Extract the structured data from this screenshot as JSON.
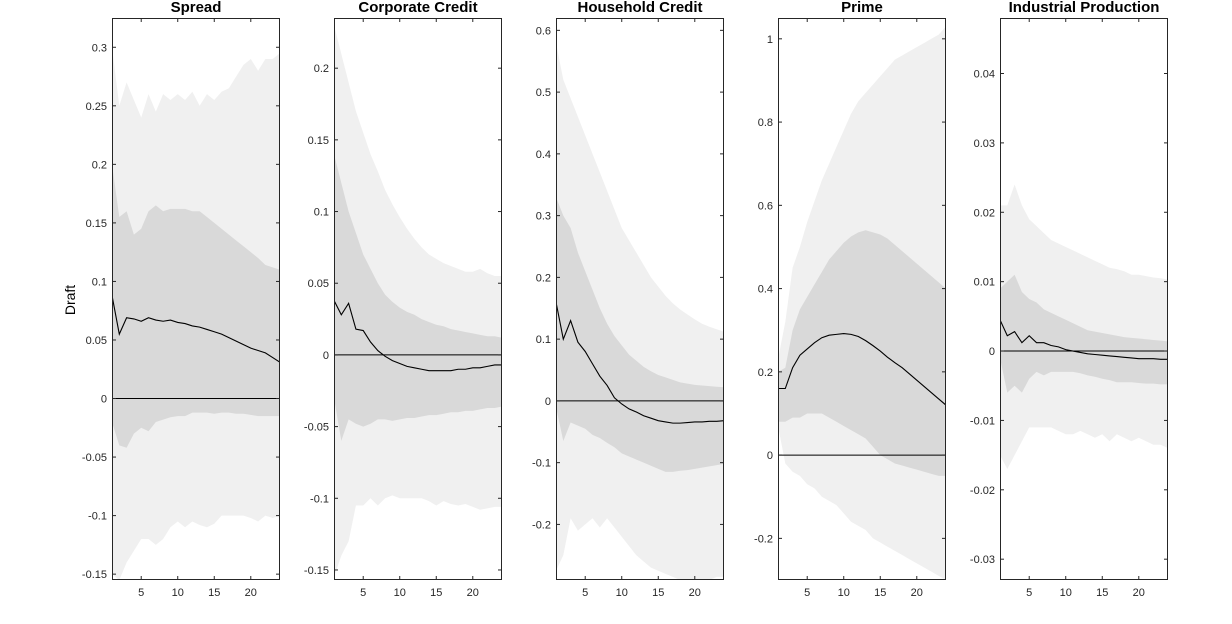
{
  "figure": {
    "ylabel": "Draft"
  },
  "chart_data": [
    {
      "type": "area",
      "title": "Spread",
      "xlabel": "",
      "ylabel": "Draft",
      "xlim": [
        1,
        24
      ],
      "ylim": [
        -0.155,
        0.325
      ],
      "xticks": [
        5,
        10,
        15,
        20
      ],
      "yticks": [
        -0.15,
        -0.1,
        -0.05,
        0,
        0.05,
        0.1,
        0.15,
        0.2,
        0.25,
        0.3
      ],
      "ytick_labels": [
        "-0.15",
        "-0.1",
        "-0.05",
        "0",
        "0.05",
        "0.1",
        "0.15",
        "0.2",
        "0.25",
        "0.3"
      ],
      "grid": false,
      "legend": "none",
      "x": [
        1,
        2,
        3,
        4,
        5,
        6,
        7,
        8,
        9,
        10,
        11,
        12,
        13,
        14,
        15,
        16,
        17,
        18,
        19,
        20,
        21,
        22,
        23,
        24
      ],
      "series": [
        {
          "role": "response",
          "values": [
            0.088,
            0.055,
            0.069,
            0.068,
            0.066,
            0.069,
            0.067,
            0.066,
            0.067,
            0.065,
            0.064,
            0.062,
            0.061,
            0.059,
            0.057,
            0.055,
            0.052,
            0.049,
            0.046,
            0.043,
            0.041,
            0.039,
            0.035,
            0.031
          ]
        },
        {
          "role": "band_inner_upper",
          "values": [
            0.2,
            0.155,
            0.16,
            0.14,
            0.145,
            0.16,
            0.165,
            0.16,
            0.162,
            0.162,
            0.162,
            0.16,
            0.16,
            0.155,
            0.15,
            0.145,
            0.14,
            0.135,
            0.13,
            0.125,
            0.12,
            0.114,
            0.112,
            0.11
          ]
        },
        {
          "role": "band_inner_lower",
          "values": [
            -0.02,
            -0.04,
            -0.042,
            -0.03,
            -0.025,
            -0.028,
            -0.02,
            -0.018,
            -0.016,
            -0.015,
            -0.015,
            -0.012,
            -0.012,
            -0.012,
            -0.013,
            -0.012,
            -0.012,
            -0.013,
            -0.013,
            -0.014,
            -0.015,
            -0.015,
            -0.015,
            -0.015
          ]
        },
        {
          "role": "band_outer_upper",
          "values": [
            0.3,
            0.25,
            0.27,
            0.255,
            0.24,
            0.26,
            0.245,
            0.26,
            0.255,
            0.26,
            0.255,
            0.262,
            0.25,
            0.26,
            0.255,
            0.262,
            0.265,
            0.275,
            0.285,
            0.29,
            0.28,
            0.29,
            0.29,
            0.295
          ]
        },
        {
          "role": "band_outer_lower",
          "values": [
            -0.15,
            -0.155,
            -0.14,
            -0.13,
            -0.12,
            -0.12,
            -0.125,
            -0.12,
            -0.11,
            -0.105,
            -0.11,
            -0.105,
            -0.108,
            -0.11,
            -0.107,
            -0.1,
            -0.1,
            -0.1,
            -0.1,
            -0.102,
            -0.105,
            -0.1,
            -0.102,
            -0.1
          ]
        }
      ]
    },
    {
      "type": "area",
      "title": "Corporate Credit",
      "xlabel": "",
      "ylabel": "",
      "xlim": [
        1,
        24
      ],
      "ylim": [
        -0.157,
        0.235
      ],
      "xticks": [
        5,
        10,
        15,
        20
      ],
      "yticks": [
        -0.15,
        -0.1,
        -0.05,
        0,
        0.05,
        0.1,
        0.15,
        0.2
      ],
      "ytick_labels": [
        "-0.15",
        "-0.1",
        "-0.05",
        "0",
        "0.05",
        "0.1",
        "0.15",
        "0.2"
      ],
      "grid": false,
      "legend": "none",
      "x": [
        1,
        2,
        3,
        4,
        5,
        6,
        7,
        8,
        9,
        10,
        11,
        12,
        13,
        14,
        15,
        16,
        17,
        18,
        19,
        20,
        21,
        22,
        23,
        24
      ],
      "series": [
        {
          "role": "response",
          "values": [
            0.038,
            0.028,
            0.036,
            0.018,
            0.017,
            0.009,
            0.003,
            -0.001,
            -0.004,
            -0.006,
            -0.008,
            -0.009,
            -0.01,
            -0.011,
            -0.011,
            -0.011,
            -0.011,
            -0.01,
            -0.01,
            -0.009,
            -0.009,
            -0.008,
            -0.007,
            -0.007
          ]
        },
        {
          "role": "band_inner_upper",
          "values": [
            0.14,
            0.12,
            0.1,
            0.085,
            0.07,
            0.06,
            0.05,
            0.042,
            0.037,
            0.033,
            0.03,
            0.028,
            0.025,
            0.023,
            0.021,
            0.02,
            0.018,
            0.017,
            0.016,
            0.015,
            0.014,
            0.013,
            0.013,
            0.012
          ]
        },
        {
          "role": "band_inner_lower",
          "values": [
            -0.03,
            -0.06,
            -0.045,
            -0.048,
            -0.05,
            -0.048,
            -0.045,
            -0.045,
            -0.046,
            -0.045,
            -0.044,
            -0.044,
            -0.043,
            -0.042,
            -0.042,
            -0.041,
            -0.04,
            -0.04,
            -0.039,
            -0.039,
            -0.038,
            -0.037,
            -0.037,
            -0.036
          ]
        },
        {
          "role": "band_outer_upper",
          "values": [
            0.23,
            0.21,
            0.19,
            0.17,
            0.155,
            0.14,
            0.128,
            0.115,
            0.105,
            0.096,
            0.088,
            0.081,
            0.075,
            0.07,
            0.067,
            0.064,
            0.062,
            0.06,
            0.058,
            0.058,
            0.06,
            0.057,
            0.055,
            0.055
          ]
        },
        {
          "role": "band_outer_lower",
          "values": [
            -0.155,
            -0.14,
            -0.13,
            -0.105,
            -0.105,
            -0.1,
            -0.105,
            -0.1,
            -0.098,
            -0.1,
            -0.1,
            -0.1,
            -0.1,
            -0.102,
            -0.105,
            -0.102,
            -0.104,
            -0.105,
            -0.104,
            -0.106,
            -0.108,
            -0.107,
            -0.106,
            -0.106
          ]
        }
      ]
    },
    {
      "type": "area",
      "title": "Household Credit",
      "xlabel": "",
      "ylabel": "",
      "xlim": [
        1,
        24
      ],
      "ylim": [
        -0.29,
        0.62
      ],
      "xticks": [
        5,
        10,
        15,
        20
      ],
      "yticks": [
        -0.2,
        -0.1,
        0,
        0.1,
        0.2,
        0.3,
        0.4,
        0.5,
        0.6
      ],
      "ytick_labels": [
        "-0.2",
        "-0.1",
        "0",
        "0.1",
        "0.2",
        "0.3",
        "0.4",
        "0.5",
        "0.6"
      ],
      "grid": false,
      "legend": "none",
      "x": [
        1,
        2,
        3,
        4,
        5,
        6,
        7,
        8,
        9,
        10,
        11,
        12,
        13,
        14,
        15,
        16,
        17,
        18,
        19,
        20,
        21,
        22,
        23,
        24
      ],
      "series": [
        {
          "role": "response",
          "values": [
            0.16,
            0.1,
            0.13,
            0.095,
            0.08,
            0.06,
            0.04,
            0.025,
            0.005,
            -0.005,
            -0.013,
            -0.018,
            -0.024,
            -0.028,
            -0.032,
            -0.034,
            -0.036,
            -0.036,
            -0.035,
            -0.034,
            -0.034,
            -0.033,
            -0.033,
            -0.032
          ]
        },
        {
          "role": "band_inner_upper",
          "values": [
            0.33,
            0.3,
            0.28,
            0.24,
            0.21,
            0.18,
            0.15,
            0.125,
            0.105,
            0.09,
            0.075,
            0.065,
            0.055,
            0.048,
            0.042,
            0.038,
            0.034,
            0.03,
            0.028,
            0.026,
            0.025,
            0.024,
            0.023,
            0.022
          ]
        },
        {
          "role": "band_inner_lower",
          "values": [
            -0.01,
            -0.065,
            -0.035,
            -0.04,
            -0.045,
            -0.055,
            -0.06,
            -0.068,
            -0.075,
            -0.085,
            -0.09,
            -0.095,
            -0.1,
            -0.105,
            -0.11,
            -0.115,
            -0.115,
            -0.113,
            -0.112,
            -0.11,
            -0.108,
            -0.106,
            -0.104,
            -0.102
          ]
        },
        {
          "role": "band_outer_upper",
          "values": [
            0.58,
            0.52,
            0.49,
            0.46,
            0.43,
            0.4,
            0.37,
            0.34,
            0.31,
            0.28,
            0.26,
            0.24,
            0.22,
            0.2,
            0.185,
            0.17,
            0.158,
            0.148,
            0.14,
            0.132,
            0.125,
            0.12,
            0.116,
            0.112
          ]
        },
        {
          "role": "band_outer_lower",
          "values": [
            -0.275,
            -0.25,
            -0.19,
            -0.21,
            -0.2,
            -0.19,
            -0.205,
            -0.19,
            -0.205,
            -0.22,
            -0.235,
            -0.25,
            -0.26,
            -0.27,
            -0.275,
            -0.28,
            -0.285,
            -0.29,
            -0.29,
            -0.29,
            -0.29,
            -0.29,
            -0.285,
            -0.285
          ]
        }
      ]
    },
    {
      "type": "area",
      "title": "Prime",
      "xlabel": "",
      "ylabel": "",
      "xlim": [
        1,
        24
      ],
      "ylim": [
        -0.3,
        1.05
      ],
      "xticks": [
        5,
        10,
        15,
        20
      ],
      "yticks": [
        -0.2,
        0,
        0.2,
        0.4,
        0.6,
        0.8,
        1
      ],
      "ytick_labels": [
        "-0.2",
        "0",
        "0.2",
        "0.4",
        "0.6",
        "0.8",
        "1"
      ],
      "grid": false,
      "legend": "none",
      "x": [
        1,
        2,
        3,
        4,
        5,
        6,
        7,
        8,
        9,
        10,
        11,
        12,
        13,
        14,
        15,
        16,
        17,
        18,
        19,
        20,
        21,
        22,
        23,
        24
      ],
      "series": [
        {
          "role": "response",
          "values": [
            0.16,
            0.16,
            0.21,
            0.24,
            0.255,
            0.27,
            0.282,
            0.288,
            0.29,
            0.292,
            0.29,
            0.285,
            0.275,
            0.263,
            0.25,
            0.235,
            0.222,
            0.21,
            0.195,
            0.18,
            0.165,
            0.15,
            0.135,
            0.12
          ]
        },
        {
          "role": "band_inner_upper",
          "values": [
            0.2,
            0.21,
            0.3,
            0.35,
            0.38,
            0.41,
            0.44,
            0.47,
            0.49,
            0.51,
            0.525,
            0.535,
            0.54,
            0.535,
            0.53,
            0.52,
            0.505,
            0.49,
            0.475,
            0.46,
            0.445,
            0.43,
            0.415,
            0.4
          ]
        },
        {
          "role": "band_inner_lower",
          "values": [
            0.08,
            0.08,
            0.09,
            0.09,
            0.1,
            0.1,
            0.1,
            0.09,
            0.08,
            0.07,
            0.06,
            0.05,
            0.04,
            0.02,
            0.0,
            -0.01,
            -0.02,
            -0.025,
            -0.03,
            -0.035,
            -0.04,
            -0.045,
            -0.05,
            -0.05
          ]
        },
        {
          "role": "band_outer_upper",
          "values": [
            0.23,
            0.32,
            0.45,
            0.5,
            0.56,
            0.61,
            0.66,
            0.7,
            0.74,
            0.78,
            0.82,
            0.85,
            0.87,
            0.89,
            0.91,
            0.93,
            0.95,
            0.96,
            0.97,
            0.98,
            0.99,
            1.0,
            1.01,
            1.03
          ]
        },
        {
          "role": "band_outer_lower",
          "values": [
            0.07,
            -0.02,
            -0.04,
            -0.05,
            -0.07,
            -0.08,
            -0.1,
            -0.11,
            -0.12,
            -0.14,
            -0.16,
            -0.17,
            -0.18,
            -0.2,
            -0.21,
            -0.22,
            -0.23,
            -0.24,
            -0.25,
            -0.26,
            -0.27,
            -0.28,
            -0.29,
            -0.3
          ]
        }
      ]
    },
    {
      "type": "area",
      "title": "Industrial Production",
      "xlabel": "",
      "ylabel": "",
      "xlim": [
        1,
        24
      ],
      "ylim": [
        -0.033,
        0.048
      ],
      "xticks": [
        5,
        10,
        15,
        20
      ],
      "yticks": [
        -0.03,
        -0.02,
        -0.01,
        0,
        0.01,
        0.02,
        0.03,
        0.04
      ],
      "ytick_labels": [
        "-0.03",
        "-0.02",
        "-0.01",
        "0",
        "0.01",
        "0.02",
        "0.03",
        "0.04"
      ],
      "grid": false,
      "legend": "none",
      "x": [
        1,
        2,
        3,
        4,
        5,
        6,
        7,
        8,
        9,
        10,
        11,
        12,
        13,
        14,
        15,
        16,
        17,
        18,
        19,
        20,
        21,
        22,
        23,
        24
      ],
      "series": [
        {
          "role": "response",
          "values": [
            0.0045,
            0.0022,
            0.0028,
            0.0012,
            0.0022,
            0.0012,
            0.0012,
            0.0008,
            0.0006,
            0.0002,
            0.0,
            -0.0002,
            -0.0004,
            -0.0005,
            -0.0006,
            -0.0007,
            -0.0008,
            -0.0009,
            -0.001,
            -0.0011,
            -0.0011,
            -0.0011,
            -0.0012,
            -0.0012
          ]
        },
        {
          "role": "band_inner_upper",
          "values": [
            0.009,
            0.01,
            0.011,
            0.0085,
            0.0075,
            0.007,
            0.006,
            0.0055,
            0.005,
            0.0045,
            0.004,
            0.0035,
            0.003,
            0.0028,
            0.0026,
            0.0024,
            0.0022,
            0.002,
            0.0019,
            0.0018,
            0.0017,
            0.0016,
            0.0015,
            0.0014
          ]
        },
        {
          "role": "band_inner_lower",
          "values": [
            -0.001,
            -0.006,
            -0.005,
            -0.006,
            -0.004,
            -0.003,
            -0.0035,
            -0.003,
            -0.003,
            -0.003,
            -0.003,
            -0.0032,
            -0.0035,
            -0.0037,
            -0.004,
            -0.0042,
            -0.0045,
            -0.0045,
            -0.0045,
            -0.0046,
            -0.0047,
            -0.0047,
            -0.0048,
            -0.0048
          ]
        },
        {
          "role": "band_outer_upper",
          "values": [
            0.021,
            0.021,
            0.024,
            0.021,
            0.019,
            0.018,
            0.017,
            0.016,
            0.0155,
            0.015,
            0.0145,
            0.014,
            0.0135,
            0.013,
            0.0125,
            0.012,
            0.0118,
            0.0115,
            0.011,
            0.011,
            0.0108,
            0.0106,
            0.0105,
            0.0103
          ]
        },
        {
          "role": "band_outer_lower",
          "values": [
            -0.015,
            -0.017,
            -0.015,
            -0.013,
            -0.011,
            -0.011,
            -0.011,
            -0.011,
            -0.0115,
            -0.012,
            -0.012,
            -0.0115,
            -0.012,
            -0.0125,
            -0.012,
            -0.013,
            -0.012,
            -0.0125,
            -0.013,
            -0.0125,
            -0.013,
            -0.0135,
            -0.0135,
            -0.014
          ]
        }
      ]
    }
  ],
  "colors": {
    "outer_band": "#f0f0f0",
    "inner_band": "#d9d9d9",
    "response_line": "#000000",
    "zero_line": "#000000",
    "axes": "#262626"
  }
}
